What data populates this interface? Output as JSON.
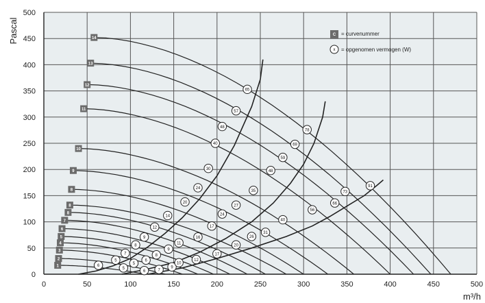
{
  "chart_data": {
    "type": "line",
    "xlabel": "m³/h",
    "ylabel": "Pascal",
    "xlim": [
      0,
      500
    ],
    "ylim": [
      0,
      500
    ],
    "x_ticks": [
      "0",
      "50",
      "100",
      "150",
      "200",
      "250",
      "300",
      "350",
      "400",
      "450",
      "500"
    ],
    "y_ticks": [
      "0",
      "50",
      "100",
      "150",
      "200",
      "250",
      "300",
      "350",
      "400",
      "450",
      "500"
    ],
    "grid": true,
    "legend_position": "top-right",
    "legend": [
      {
        "symbol": "C",
        "label": "= curvenummer"
      },
      {
        "symbol": "x",
        "label": "= opgenomen vermogen (W)"
      }
    ],
    "colors": {
      "line": "#222222",
      "grid": "#555555",
      "curve_label_bg": "#6b6b6b",
      "background": "#e9eef0"
    },
    "series": [
      {
        "name": "1",
        "label_point": [
          16,
          17
        ],
        "end_x": 118
      },
      {
        "name": "2",
        "label_point": [
          17,
          30
        ],
        "end_x": 140
      },
      {
        "name": "3",
        "label_point": [
          18,
          46
        ],
        "end_x": 160
      },
      {
        "name": "4",
        "label_point": [
          19,
          60
        ],
        "end_x": 178
      },
      {
        "name": "5",
        "label_point": [
          20,
          72
        ],
        "end_x": 196
      },
      {
        "name": "6",
        "label_point": [
          21,
          87
        ],
        "end_x": 215
      },
      {
        "name": "7",
        "label_point": [
          24,
          103
        ],
        "end_x": 235
      },
      {
        "name": "8",
        "label_point": [
          28,
          118
        ],
        "end_x": 256
      },
      {
        "name": "8",
        "label_point": [
          30,
          132
        ],
        "end_x": 280
      },
      {
        "name": "8",
        "label_point": [
          32,
          162
        ],
        "end_x": 300
      },
      {
        "name": "9",
        "label_point": [
          34,
          198
        ],
        "end_x": 328
      },
      {
        "name": "10",
        "label_point": [
          40,
          240
        ],
        "end_x": 358
      },
      {
        "name": "11",
        "label_point": [
          46,
          316
        ],
        "end_x": 400
      },
      {
        "name": "12",
        "label_point": [
          50,
          362
        ],
        "end_x": 427
      },
      {
        "name": "13",
        "label_point": [
          54,
          403
        ],
        "end_x": 447
      },
      {
        "name": "14",
        "label_point": [
          58,
          452
        ],
        "end_x": 470
      }
    ],
    "power_lines": [
      {
        "points": [
          [
            40,
            0
          ],
          [
            60,
            6
          ],
          [
            80,
            16
          ],
          [
            100,
            30
          ],
          [
            120,
            52
          ],
          [
            140,
            78
          ],
          [
            160,
            108
          ],
          [
            180,
            144
          ],
          [
            200,
            188
          ],
          [
            220,
            246
          ],
          [
            240,
            320
          ],
          [
            250,
            372
          ],
          [
            253,
            410
          ]
        ],
        "markers": [
          {
            "label": "6",
            "x": 63,
            "y": 17
          },
          {
            "label": "5",
            "x": 83,
            "y": 27
          },
          {
            "label": "7",
            "x": 94,
            "y": 40
          },
          {
            "label": "8",
            "x": 106,
            "y": 56
          },
          {
            "label": "9",
            "x": 116,
            "y": 71
          },
          {
            "label": "12",
            "x": 128,
            "y": 90
          },
          {
            "label": "14",
            "x": 143,
            "y": 112
          },
          {
            "label": "20",
            "x": 163,
            "y": 138
          },
          {
            "label": "24",
            "x": 178,
            "y": 165
          },
          {
            "label": "30",
            "x": 190,
            "y": 202
          },
          {
            "label": "40",
            "x": 198,
            "y": 250
          },
          {
            "label": "48",
            "x": 206,
            "y": 282
          },
          {
            "label": "57",
            "x": 222,
            "y": 312
          },
          {
            "label": "65",
            "x": 235,
            "y": 353
          }
        ]
      },
      {
        "points": [
          [
            90,
            0
          ],
          [
            120,
            10
          ],
          [
            150,
            22
          ],
          [
            180,
            42
          ],
          [
            210,
            68
          ],
          [
            240,
            100
          ],
          [
            265,
            136
          ],
          [
            285,
            174
          ],
          [
            300,
            210
          ],
          [
            312,
            250
          ],
          [
            322,
            300
          ],
          [
            325,
            330
          ]
        ],
        "markers": [
          {
            "label": "5",
            "x": 92,
            "y": 12
          },
          {
            "label": "5",
            "x": 104,
            "y": 21
          },
          {
            "label": "6",
            "x": 118,
            "y": 27
          },
          {
            "label": "8",
            "x": 130,
            "y": 37
          },
          {
            "label": "9",
            "x": 144,
            "y": 48
          },
          {
            "label": "11",
            "x": 156,
            "y": 60
          },
          {
            "label": "16",
            "x": 178,
            "y": 71
          },
          {
            "label": "17",
            "x": 194,
            "y": 92
          },
          {
            "label": "24",
            "x": 206,
            "y": 115
          },
          {
            "label": "27",
            "x": 222,
            "y": 132
          },
          {
            "label": "35",
            "x": 242,
            "y": 160
          },
          {
            "label": "48",
            "x": 262,
            "y": 198
          },
          {
            "label": "59",
            "x": 276,
            "y": 223
          },
          {
            "label": "69",
            "x": 290,
            "y": 248
          },
          {
            "label": "78",
            "x": 304,
            "y": 276
          }
        ]
      },
      {
        "points": [
          [
            120,
            0
          ],
          [
            160,
            12
          ],
          [
            200,
            30
          ],
          [
            240,
            50
          ],
          [
            280,
            72
          ],
          [
            310,
            92
          ],
          [
            330,
            110
          ],
          [
            350,
            130
          ],
          [
            370,
            150
          ],
          [
            385,
            170
          ],
          [
            392,
            180
          ]
        ],
        "markers": [
          {
            "label": "6",
            "x": 116,
            "y": 7
          },
          {
            "label": "7",
            "x": 133,
            "y": 9
          },
          {
            "label": "9",
            "x": 148,
            "y": 14
          },
          {
            "label": "10",
            "x": 156,
            "y": 22
          },
          {
            "label": "12",
            "x": 176,
            "y": 28
          },
          {
            "label": "17",
            "x": 200,
            "y": 39
          },
          {
            "label": "20",
            "x": 222,
            "y": 56
          },
          {
            "label": "26",
            "x": 240,
            "y": 72
          },
          {
            "label": "31",
            "x": 256,
            "y": 80
          },
          {
            "label": "40",
            "x": 276,
            "y": 104
          },
          {
            "label": "56",
            "x": 310,
            "y": 123
          },
          {
            "label": "66",
            "x": 336,
            "y": 136
          },
          {
            "label": "73",
            "x": 348,
            "y": 158
          },
          {
            "label": "91",
            "x": 377,
            "y": 169
          }
        ]
      }
    ]
  }
}
